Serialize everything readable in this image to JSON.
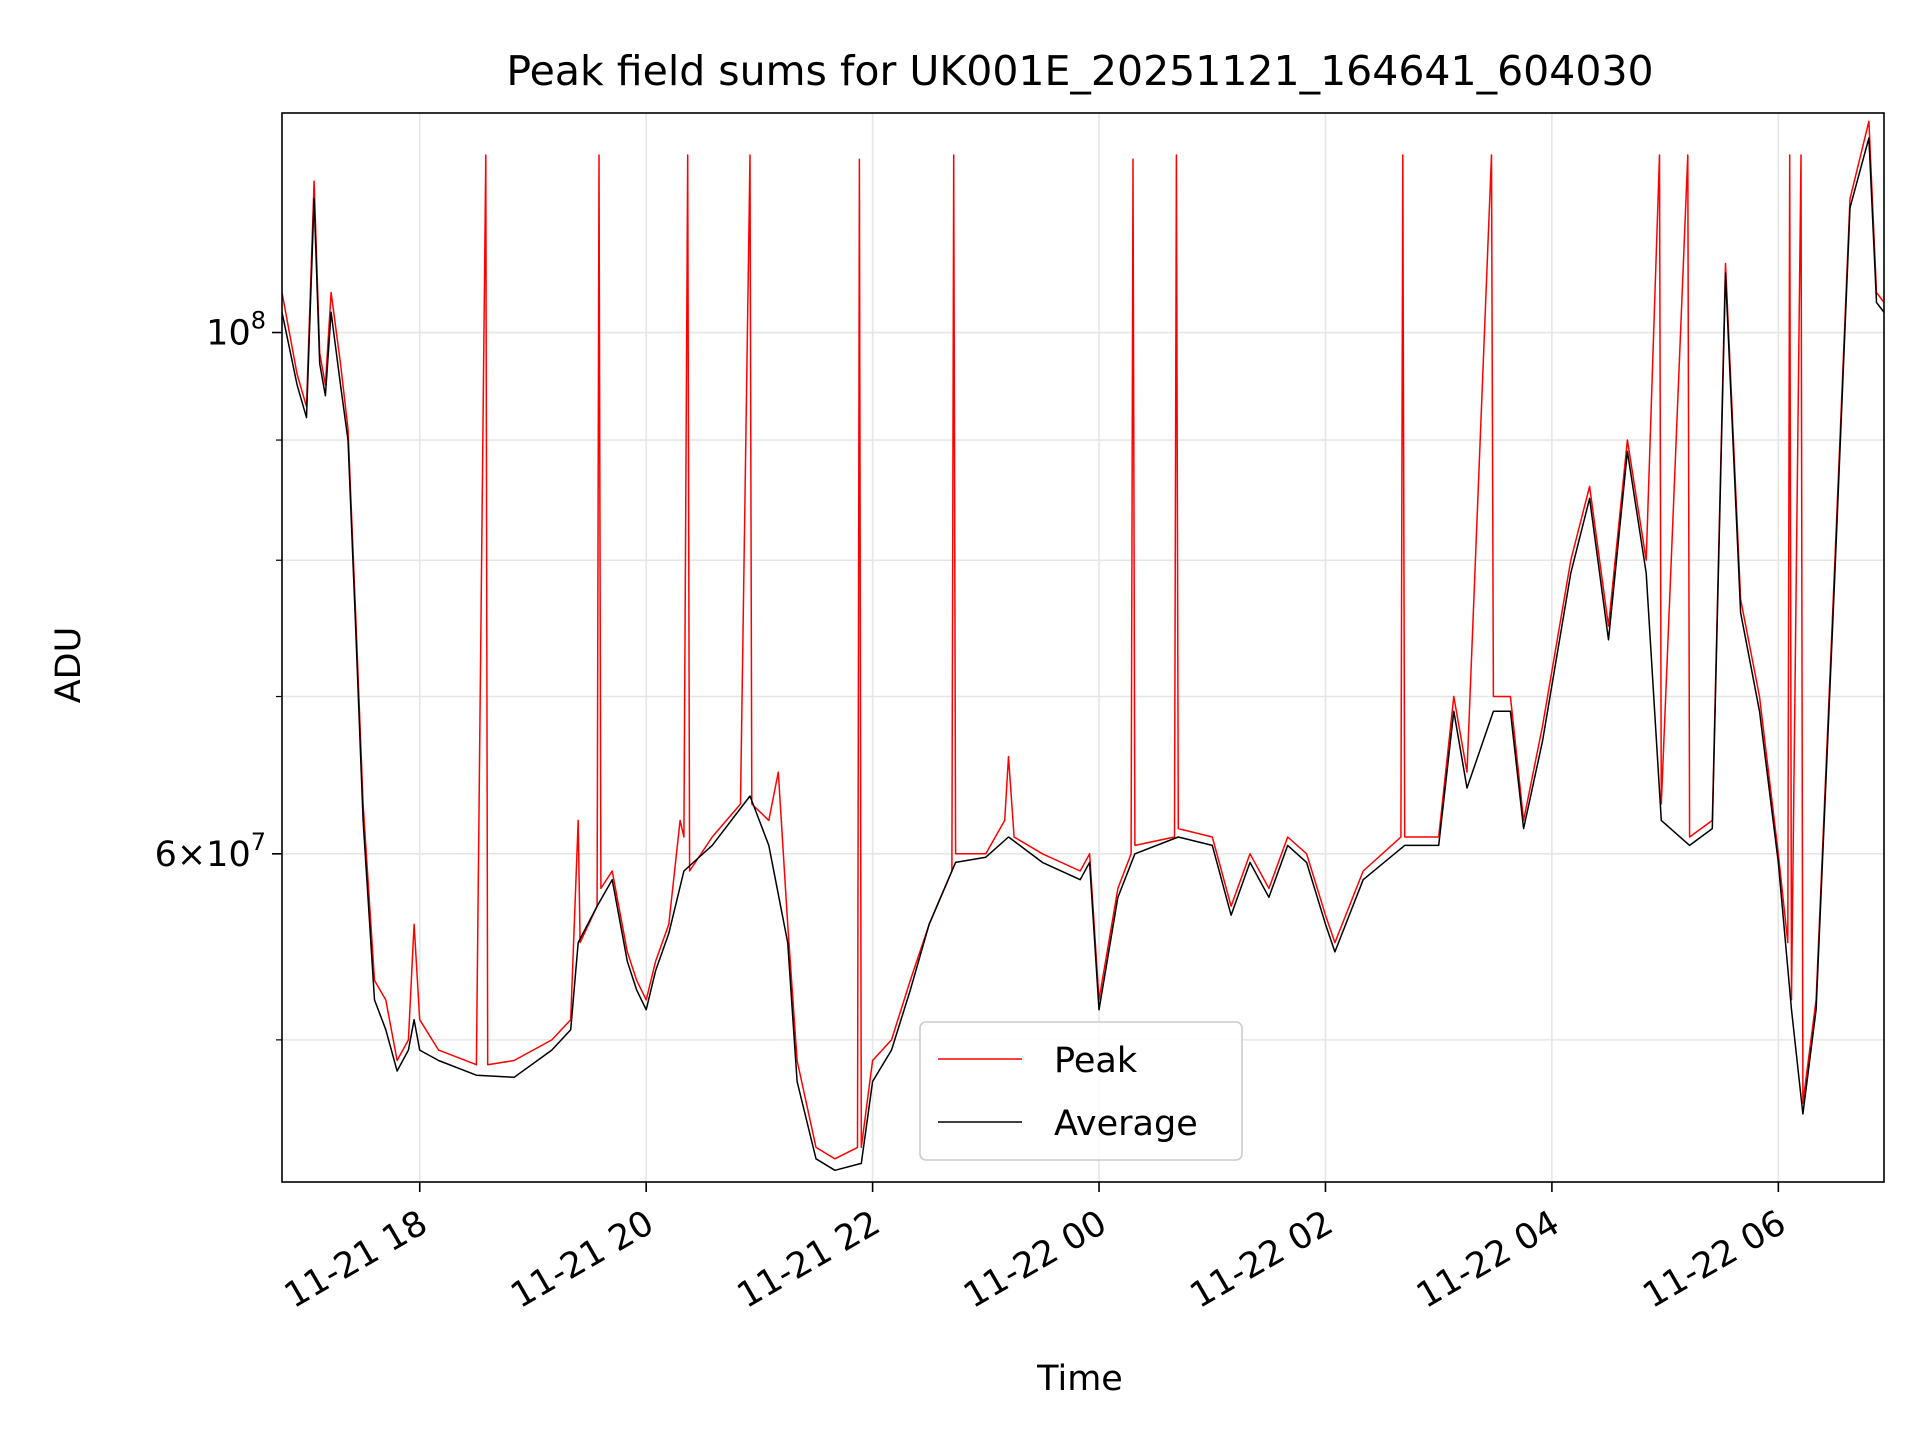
{
  "chart_data": {
    "type": "line",
    "title": "Peak field sums for UK001E_20251121_164641_604030",
    "xlabel": "Time",
    "ylabel": "ADU",
    "x_range": [
      "2025-11-21T16:47",
      "2025-11-22T06:56"
    ],
    "y_range": [
      43500000,
      124000000
    ],
    "y_scale": "log",
    "x_ticks": [
      {
        "time": "2025-11-21T18:00",
        "label": "11-21 18"
      },
      {
        "time": "2025-11-21T20:00",
        "label": "11-21 20"
      },
      {
        "time": "2025-11-21T22:00",
        "label": "11-21 22"
      },
      {
        "time": "2025-11-22T00:00",
        "label": "11-22 00"
      },
      {
        "time": "2025-11-22T02:00",
        "label": "11-22 02"
      },
      {
        "time": "2025-11-22T04:00",
        "label": "11-22 04"
      },
      {
        "time": "2025-11-22T06:00",
        "label": "11-22 06"
      }
    ],
    "y_major_ticks": [
      {
        "value": 60000000,
        "mant": "6",
        "exp": "7"
      },
      {
        "value": 100000000,
        "mant": "",
        "exp": "8"
      }
    ],
    "y_minor_ticks": [
      50000000,
      70000000,
      80000000,
      90000000
    ],
    "grid": true,
    "legend": {
      "position": "lower center",
      "entries": [
        "Peak",
        "Average"
      ]
    },
    "series": [
      {
        "name": "Peak",
        "color": "#ff0000",
        "points": [
          [
            "2025-11-21T16:47",
            104000000
          ],
          [
            "2025-11-21T16:55",
            96000000
          ],
          [
            "2025-11-21T17:00",
            93000000
          ],
          [
            "2025-11-21T17:04",
            116000000
          ],
          [
            "2025-11-21T17:07",
            98000000
          ],
          [
            "2025-11-21T17:10",
            95000000
          ],
          [
            "2025-11-21T17:13",
            104000000
          ],
          [
            "2025-11-21T17:18",
            97000000
          ],
          [
            "2025-11-21T17:22",
            91000000
          ],
          [
            "2025-11-21T17:26",
            76000000
          ],
          [
            "2025-11-21T17:30",
            63000000
          ],
          [
            "2025-11-21T17:36",
            53000000
          ],
          [
            "2025-11-21T17:42",
            52000000
          ],
          [
            "2025-11-21T17:48",
            49000000
          ],
          [
            "2025-11-21T17:54",
            50000000
          ],
          [
            "2025-11-21T17:57",
            56000000
          ],
          [
            "2025-11-21T18:00",
            51000000
          ],
          [
            "2025-11-21T18:10",
            49500000
          ],
          [
            "2025-11-21T18:30",
            48800000
          ],
          [
            "2025-11-21T18:35",
            119000000
          ],
          [
            "2025-11-21T18:36",
            48800000
          ],
          [
            "2025-11-21T18:50",
            49000000
          ],
          [
            "2025-11-21T19:10",
            50000000
          ],
          [
            "2025-11-21T19:20",
            51000000
          ],
          [
            "2025-11-21T19:24",
            62000000
          ],
          [
            "2025-11-21T19:25",
            55000000
          ],
          [
            "2025-11-21T19:34",
            57000000
          ],
          [
            "2025-11-21T19:35",
            119000000
          ],
          [
            "2025-11-21T19:36",
            58000000
          ],
          [
            "2025-11-21T19:42",
            59000000
          ],
          [
            "2025-11-21T19:50",
            54500000
          ],
          [
            "2025-11-21T19:55",
            53000000
          ],
          [
            "2025-11-21T20:00",
            52000000
          ],
          [
            "2025-11-21T20:05",
            54000000
          ],
          [
            "2025-11-21T20:12",
            56000000
          ],
          [
            "2025-11-21T20:18",
            62000000
          ],
          [
            "2025-11-21T20:20",
            61000000
          ],
          [
            "2025-11-21T20:22",
            119000000
          ],
          [
            "2025-11-21T20:23",
            59000000
          ],
          [
            "2025-11-21T20:35",
            61000000
          ],
          [
            "2025-11-21T20:50",
            63000000
          ],
          [
            "2025-11-21T20:55",
            119000000
          ],
          [
            "2025-11-21T20:56",
            63000000
          ],
          [
            "2025-11-21T21:05",
            62000000
          ],
          [
            "2025-11-21T21:10",
            65000000
          ],
          [
            "2025-11-21T21:15",
            56000000
          ],
          [
            "2025-11-21T21:20",
            49000000
          ],
          [
            "2025-11-21T21:30",
            45000000
          ],
          [
            "2025-11-21T21:40",
            44500000
          ],
          [
            "2025-11-21T21:52",
            45000000
          ],
          [
            "2025-11-21T21:53",
            118500000
          ],
          [
            "2025-11-21T21:54",
            45000000
          ],
          [
            "2025-11-21T22:00",
            49000000
          ],
          [
            "2025-11-21T22:10",
            50000000
          ],
          [
            "2025-11-21T22:20",
            53000000
          ],
          [
            "2025-11-21T22:30",
            56000000
          ],
          [
            "2025-11-21T22:42",
            59000000
          ],
          [
            "2025-11-21T22:43",
            119000000
          ],
          [
            "2025-11-21T22:44",
            60000000
          ],
          [
            "2025-11-21T23:00",
            60000000
          ],
          [
            "2025-11-21T23:10",
            62000000
          ],
          [
            "2025-11-21T23:12",
            66000000
          ],
          [
            "2025-11-21T23:15",
            61000000
          ],
          [
            "2025-11-21T23:30",
            60000000
          ],
          [
            "2025-11-21T23:50",
            59000000
          ],
          [
            "2025-11-21T23:55",
            60000000
          ],
          [
            "2025-11-22T00:00",
            52000000
          ],
          [
            "2025-11-22T00:10",
            58000000
          ],
          [
            "2025-11-22T00:17",
            60000000
          ],
          [
            "2025-11-22T00:18",
            118500000
          ],
          [
            "2025-11-22T00:19",
            60500000
          ],
          [
            "2025-11-22T00:40",
            61000000
          ],
          [
            "2025-11-22T00:41",
            119000000
          ],
          [
            "2025-11-22T00:42",
            61500000
          ],
          [
            "2025-11-22T01:00",
            61000000
          ],
          [
            "2025-11-22T01:10",
            57000000
          ],
          [
            "2025-11-22T01:20",
            60000000
          ],
          [
            "2025-11-22T01:30",
            58000000
          ],
          [
            "2025-11-22T01:40",
            61000000
          ],
          [
            "2025-11-22T01:50",
            60000000
          ],
          [
            "2025-11-22T02:00",
            56500000
          ],
          [
            "2025-11-22T02:05",
            55000000
          ],
          [
            "2025-11-22T02:20",
            59000000
          ],
          [
            "2025-11-22T02:40",
            61000000
          ],
          [
            "2025-11-22T02:41",
            119000000
          ],
          [
            "2025-11-22T02:42",
            61000000
          ],
          [
            "2025-11-22T03:00",
            61000000
          ],
          [
            "2025-11-22T03:08",
            70000000
          ],
          [
            "2025-11-22T03:15",
            65000000
          ],
          [
            "2025-11-22T03:28",
            119000000
          ],
          [
            "2025-11-22T03:29",
            70000000
          ],
          [
            "2025-11-22T03:38",
            70000000
          ],
          [
            "2025-11-22T03:45",
            62000000
          ],
          [
            "2025-11-22T03:55",
            68000000
          ],
          [
            "2025-11-22T04:10",
            80000000
          ],
          [
            "2025-11-22T04:20",
            86000000
          ],
          [
            "2025-11-22T04:30",
            75000000
          ],
          [
            "2025-11-22T04:40",
            90000000
          ],
          [
            "2025-11-22T04:50",
            80000000
          ],
          [
            "2025-11-22T04:57",
            119000000
          ],
          [
            "2025-11-22T04:58",
            63000000
          ],
          [
            "2025-11-22T05:12",
            119000000
          ],
          [
            "2025-11-22T05:13",
            61000000
          ],
          [
            "2025-11-22T05:25",
            62000000
          ],
          [
            "2025-11-22T05:32",
            107000000
          ],
          [
            "2025-11-22T05:40",
            77000000
          ],
          [
            "2025-11-22T05:50",
            70000000
          ],
          [
            "2025-11-22T06:00",
            60000000
          ],
          [
            "2025-11-22T06:05",
            55000000
          ],
          [
            "2025-11-22T06:06",
            119000000
          ],
          [
            "2025-11-22T06:07",
            52000000
          ],
          [
            "2025-11-22T06:12",
            119000000
          ],
          [
            "2025-11-22T06:13",
            47000000
          ],
          [
            "2025-11-22T06:20",
            52000000
          ],
          [
            "2025-11-22T06:30",
            80000000
          ],
          [
            "2025-11-22T06:38",
            114000000
          ],
          [
            "2025-11-22T06:48",
            123000000
          ],
          [
            "2025-11-22T06:52",
            104000000
          ],
          [
            "2025-11-22T06:56",
            103000000
          ]
        ]
      },
      {
        "name": "Average",
        "color": "#000000",
        "points": [
          [
            "2025-11-21T16:47",
            102000000
          ],
          [
            "2025-11-21T16:55",
            95000000
          ],
          [
            "2025-11-21T17:00",
            92000000
          ],
          [
            "2025-11-21T17:04",
            114000000
          ],
          [
            "2025-11-21T17:07",
            97000000
          ],
          [
            "2025-11-21T17:10",
            94000000
          ],
          [
            "2025-11-21T17:13",
            102000000
          ],
          [
            "2025-11-21T17:18",
            95000000
          ],
          [
            "2025-11-21T17:22",
            90000000
          ],
          [
            "2025-11-21T17:26",
            75000000
          ],
          [
            "2025-11-21T17:30",
            62000000
          ],
          [
            "2025-11-21T17:36",
            52000000
          ],
          [
            "2025-11-21T17:42",
            50500000
          ],
          [
            "2025-11-21T17:48",
            48500000
          ],
          [
            "2025-11-21T17:54",
            49500000
          ],
          [
            "2025-11-21T17:57",
            51000000
          ],
          [
            "2025-11-21T18:00",
            49500000
          ],
          [
            "2025-11-21T18:10",
            49000000
          ],
          [
            "2025-11-21T18:30",
            48300000
          ],
          [
            "2025-11-21T18:50",
            48200000
          ],
          [
            "2025-11-21T19:10",
            49500000
          ],
          [
            "2025-11-21T19:20",
            50500000
          ],
          [
            "2025-11-21T19:24",
            55000000
          ],
          [
            "2025-11-21T19:34",
            57000000
          ],
          [
            "2025-11-21T19:42",
            58500000
          ],
          [
            "2025-11-21T19:50",
            54000000
          ],
          [
            "2025-11-21T19:55",
            52500000
          ],
          [
            "2025-11-21T20:00",
            51500000
          ],
          [
            "2025-11-21T20:05",
            53500000
          ],
          [
            "2025-11-21T20:12",
            55500000
          ],
          [
            "2025-11-21T20:20",
            59000000
          ],
          [
            "2025-11-21T20:35",
            60500000
          ],
          [
            "2025-11-21T20:55",
            63500000
          ],
          [
            "2025-11-21T21:05",
            60500000
          ],
          [
            "2025-11-21T21:15",
            55000000
          ],
          [
            "2025-11-21T21:20",
            48000000
          ],
          [
            "2025-11-21T21:30",
            44500000
          ],
          [
            "2025-11-21T21:40",
            44000000
          ],
          [
            "2025-11-21T21:54",
            44300000
          ],
          [
            "2025-11-21T22:00",
            48000000
          ],
          [
            "2025-11-21T22:10",
            49500000
          ],
          [
            "2025-11-21T22:20",
            52500000
          ],
          [
            "2025-11-21T22:30",
            56000000
          ],
          [
            "2025-11-21T22:44",
            59500000
          ],
          [
            "2025-11-21T23:00",
            59800000
          ],
          [
            "2025-11-21T23:12",
            61000000
          ],
          [
            "2025-11-21T23:30",
            59500000
          ],
          [
            "2025-11-21T23:50",
            58500000
          ],
          [
            "2025-11-21T23:55",
            59500000
          ],
          [
            "2025-11-22T00:00",
            51500000
          ],
          [
            "2025-11-22T00:10",
            57500000
          ],
          [
            "2025-11-22T00:19",
            60000000
          ],
          [
            "2025-11-22T00:42",
            61000000
          ],
          [
            "2025-11-22T01:00",
            60500000
          ],
          [
            "2025-11-22T01:10",
            56500000
          ],
          [
            "2025-11-22T01:20",
            59500000
          ],
          [
            "2025-11-22T01:30",
            57500000
          ],
          [
            "2025-11-22T01:40",
            60500000
          ],
          [
            "2025-11-22T01:50",
            59500000
          ],
          [
            "2025-11-22T02:00",
            56000000
          ],
          [
            "2025-11-22T02:05",
            54500000
          ],
          [
            "2025-11-22T02:20",
            58500000
          ],
          [
            "2025-11-22T02:42",
            60500000
          ],
          [
            "2025-11-22T03:00",
            60500000
          ],
          [
            "2025-11-22T03:08",
            69000000
          ],
          [
            "2025-11-22T03:15",
            64000000
          ],
          [
            "2025-11-22T03:29",
            69000000
          ],
          [
            "2025-11-22T03:38",
            69000000
          ],
          [
            "2025-11-22T03:45",
            61500000
          ],
          [
            "2025-11-22T03:55",
            67000000
          ],
          [
            "2025-11-22T04:10",
            79000000
          ],
          [
            "2025-11-22T04:20",
            85000000
          ],
          [
            "2025-11-22T04:30",
            74000000
          ],
          [
            "2025-11-22T04:40",
            89000000
          ],
          [
            "2025-11-22T04:50",
            79000000
          ],
          [
            "2025-11-22T04:58",
            62000000
          ],
          [
            "2025-11-22T05:13",
            60500000
          ],
          [
            "2025-11-22T05:25",
            61500000
          ],
          [
            "2025-11-22T05:32",
            106000000
          ],
          [
            "2025-11-22T05:40",
            76000000
          ],
          [
            "2025-11-22T05:50",
            69000000
          ],
          [
            "2025-11-22T06:00",
            59500000
          ],
          [
            "2025-11-22T06:07",
            51500000
          ],
          [
            "2025-11-22T06:13",
            46500000
          ],
          [
            "2025-11-22T06:20",
            51500000
          ],
          [
            "2025-11-22T06:30",
            79000000
          ],
          [
            "2025-11-22T06:38",
            113000000
          ],
          [
            "2025-11-22T06:48",
            121000000
          ],
          [
            "2025-11-22T06:52",
            103000000
          ],
          [
            "2025-11-22T06:56",
            102000000
          ]
        ]
      }
    ]
  }
}
